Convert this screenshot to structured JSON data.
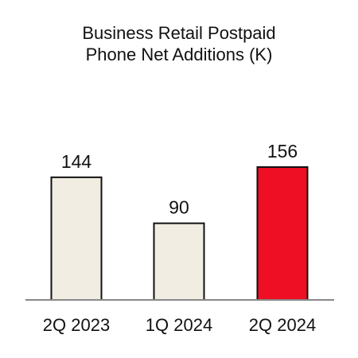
{
  "chart_data": {
    "type": "bar",
    "title_lines": [
      "Business Retail Postpaid",
      "Phone Net Additions (K)"
    ],
    "categories": [
      "2Q 2023",
      "1Q 2024",
      "2Q 2024"
    ],
    "values": [
      144,
      90,
      156
    ],
    "value_labels": [
      "144",
      "90",
      "156"
    ],
    "bar_colors": [
      "#f1ede2",
      "#f1ede2",
      "#ee0f24"
    ],
    "bar_stroke": "#111111",
    "axis_color": "#888888",
    "ylim": [
      0,
      156
    ],
    "grid": false,
    "legend": "none"
  }
}
